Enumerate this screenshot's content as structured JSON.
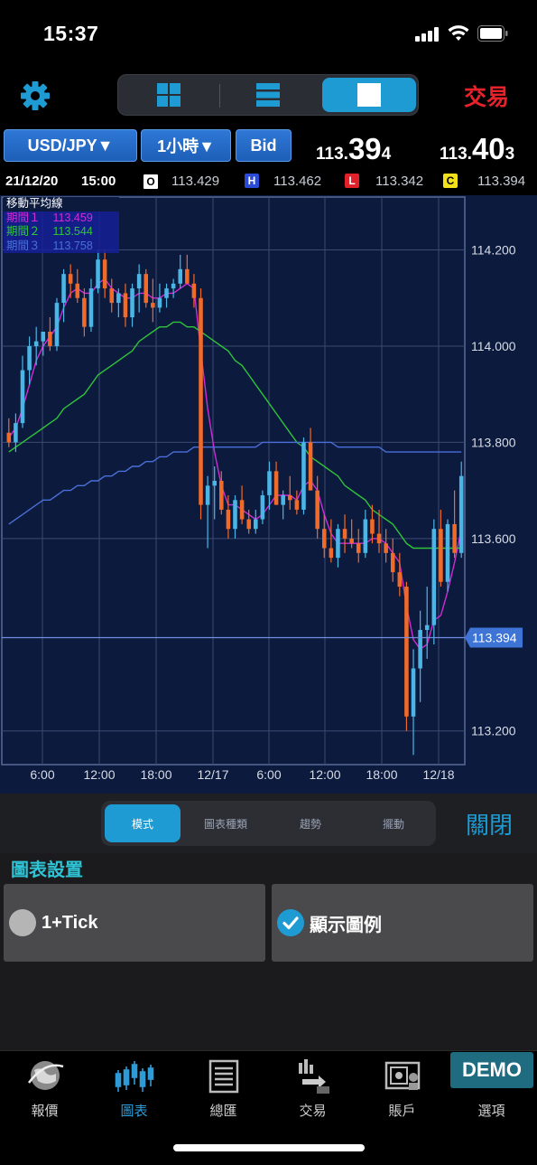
{
  "status_bar": {
    "time": "15:37"
  },
  "header": {
    "layout_buttons": [
      {
        "icon": "grid-4-icon",
        "active": false
      },
      {
        "icon": "rows-icon",
        "active": false
      },
      {
        "icon": "single-pane-icon",
        "active": true
      }
    ],
    "trade_label": "交易"
  },
  "selectors": {
    "pair": "USD/JPY▼",
    "timeframe": "1小時▼",
    "side": "Bid"
  },
  "quotes": {
    "bid": {
      "small": "113.",
      "big": "39",
      "tail": "4"
    },
    "ask": {
      "small": "113.",
      "big": "40",
      "tail": "3"
    }
  },
  "ohlc": {
    "date": "21/12/20",
    "time": "15:00",
    "open_label": "O",
    "open": "113.429",
    "high_label": "H",
    "high": "113.462",
    "low_label": "L",
    "low": "113.342",
    "close_label": "C",
    "close": "113.394"
  },
  "legend": {
    "title": "移動平均線",
    "items": [
      {
        "name": "期間１",
        "value": "113.459",
        "color": "#d02bd6"
      },
      {
        "name": "期間２",
        "value": "113.544",
        "color": "#2fc43a"
      },
      {
        "name": "期間３",
        "value": "113.758",
        "color": "#4a6fd8"
      }
    ]
  },
  "chart_data": {
    "type": "candlestick",
    "y_ticks": [
      "114.200",
      "114.000",
      "113.800",
      "113.600",
      "113.200"
    ],
    "y_tick_values": [
      114.2,
      114.0,
      113.8,
      113.6,
      113.2
    ],
    "ylim": [
      113.13,
      114.31
    ],
    "x_ticks": [
      "6:00",
      "12:00",
      "18:00",
      "12/17",
      "6:00",
      "12:00",
      "18:00",
      "12/18"
    ],
    "current_price": "113.394",
    "current_price_value": 113.394,
    "colors": {
      "up": "#4bb6e6",
      "down": "#f06a2a",
      "grid": "#3b4a72"
    },
    "candles": [
      [
        113.82,
        113.85,
        113.79,
        113.8
      ],
      [
        113.8,
        113.86,
        113.78,
        113.84
      ],
      [
        113.84,
        113.98,
        113.83,
        113.95
      ],
      [
        113.95,
        114.02,
        113.92,
        114.0
      ],
      [
        114.0,
        114.04,
        113.96,
        114.01
      ],
      [
        114.01,
        114.03,
        113.98,
        114.03
      ],
      [
        114.03,
        114.06,
        113.99,
        114.0
      ],
      [
        114.0,
        114.1,
        113.99,
        114.09
      ],
      [
        114.09,
        114.16,
        114.05,
        114.15
      ],
      [
        114.15,
        114.17,
        114.1,
        114.13
      ],
      [
        114.13,
        114.16,
        114.09,
        114.1
      ],
      [
        114.1,
        114.12,
        114.02,
        114.04
      ],
      [
        114.04,
        114.14,
        114.03,
        114.12
      ],
      [
        114.12,
        114.2,
        114.11,
        114.18
      ],
      [
        114.18,
        114.2,
        114.1,
        114.12
      ],
      [
        114.12,
        114.14,
        114.07,
        114.09
      ],
      [
        114.09,
        114.12,
        114.06,
        114.11
      ],
      [
        114.11,
        114.13,
        114.04,
        114.06
      ],
      [
        114.06,
        114.13,
        114.04,
        114.12
      ],
      [
        114.12,
        114.17,
        114.07,
        114.15
      ],
      [
        114.15,
        114.16,
        114.08,
        114.09
      ],
      [
        114.09,
        114.14,
        114.05,
        114.08
      ],
      [
        114.08,
        114.13,
        114.07,
        114.1
      ],
      [
        114.1,
        114.13,
        114.08,
        114.12
      ],
      [
        114.12,
        114.14,
        114.1,
        114.13
      ],
      [
        114.13,
        114.19,
        114.12,
        114.16
      ],
      [
        114.16,
        114.19,
        114.13,
        114.13
      ],
      [
        114.13,
        114.15,
        114.08,
        114.1
      ],
      [
        114.1,
        114.12,
        113.64,
        113.67
      ],
      [
        113.67,
        113.73,
        113.58,
        113.71
      ],
      [
        113.71,
        113.75,
        113.64,
        113.72
      ],
      [
        113.72,
        113.74,
        113.65,
        113.66
      ],
      [
        113.66,
        113.69,
        113.6,
        113.62
      ],
      [
        113.62,
        113.69,
        113.6,
        113.68
      ],
      [
        113.68,
        113.71,
        113.63,
        113.64
      ],
      [
        113.64,
        113.66,
        113.61,
        113.62
      ],
      [
        113.62,
        113.66,
        113.61,
        113.64
      ],
      [
        113.64,
        113.7,
        113.63,
        113.69
      ],
      [
        113.69,
        113.76,
        113.66,
        113.74
      ],
      [
        113.74,
        113.76,
        113.67,
        113.67
      ],
      [
        113.67,
        113.7,
        113.64,
        113.69
      ],
      [
        113.69,
        113.73,
        113.66,
        113.68
      ],
      [
        113.68,
        113.7,
        113.65,
        113.66
      ],
      [
        113.66,
        113.81,
        113.65,
        113.8
      ],
      [
        113.8,
        113.83,
        113.7,
        113.7
      ],
      [
        113.7,
        113.73,
        113.6,
        113.62
      ],
      [
        113.62,
        113.65,
        113.56,
        113.58
      ],
      [
        113.58,
        113.64,
        113.55,
        113.56
      ],
      [
        113.56,
        113.63,
        113.54,
        113.62
      ],
      [
        113.62,
        113.65,
        113.57,
        113.6
      ],
      [
        113.6,
        113.64,
        113.58,
        113.59
      ],
      [
        113.59,
        113.62,
        113.55,
        113.57
      ],
      [
        113.57,
        113.66,
        113.56,
        113.64
      ],
      [
        113.64,
        113.67,
        113.59,
        113.61
      ],
      [
        113.61,
        113.66,
        113.57,
        113.59
      ],
      [
        113.59,
        113.62,
        113.55,
        113.57
      ],
      [
        113.57,
        113.6,
        113.51,
        113.53
      ],
      [
        113.53,
        113.57,
        113.48,
        113.5
      ],
      [
        113.5,
        113.51,
        113.2,
        113.23
      ],
      [
        113.23,
        113.37,
        113.15,
        113.33
      ],
      [
        113.33,
        113.45,
        113.26,
        113.41
      ],
      [
        113.41,
        113.5,
        113.35,
        113.42
      ],
      [
        113.42,
        113.64,
        113.38,
        113.62
      ],
      [
        113.62,
        113.66,
        113.5,
        113.51
      ],
      [
        113.51,
        113.64,
        113.49,
        113.63
      ],
      [
        113.63,
        113.7,
        113.56,
        113.57
      ],
      [
        113.57,
        113.76,
        113.56,
        113.73
      ]
    ],
    "ma_series": [
      {
        "name": "期間１",
        "color": "#d02bd6",
        "values": [
          113.81,
          113.83,
          113.87,
          113.92,
          113.97,
          114.0,
          114.02,
          114.04,
          114.08,
          114.11,
          114.12,
          114.11,
          114.11,
          114.13,
          114.14,
          114.12,
          114.11,
          114.1,
          114.1,
          114.11,
          114.11,
          114.1,
          114.1,
          114.11,
          114.11,
          114.12,
          114.13,
          114.12,
          113.99,
          113.87,
          113.78,
          113.71,
          113.67,
          113.67,
          113.66,
          113.65,
          113.64,
          113.65,
          113.67,
          113.69,
          113.69,
          113.69,
          113.68,
          113.71,
          113.72,
          113.7,
          113.65,
          113.61,
          113.59,
          113.59,
          113.59,
          113.59,
          113.59,
          113.6,
          113.6,
          113.59,
          113.57,
          113.55,
          113.46,
          113.39,
          113.37,
          113.38,
          113.43,
          113.44,
          113.49,
          113.55,
          113.62
        ]
      },
      {
        "name": "期間２",
        "color": "#2fc43a",
        "values": [
          113.78,
          113.79,
          113.8,
          113.81,
          113.82,
          113.83,
          113.84,
          113.85,
          113.87,
          113.88,
          113.89,
          113.9,
          113.92,
          113.94,
          113.95,
          113.96,
          113.97,
          113.98,
          113.99,
          114.01,
          114.02,
          114.03,
          114.04,
          114.04,
          114.05,
          114.05,
          114.04,
          114.04,
          114.03,
          114.02,
          114.01,
          114.0,
          113.99,
          113.97,
          113.96,
          113.94,
          113.92,
          113.9,
          113.88,
          113.86,
          113.84,
          113.82,
          113.8,
          113.79,
          113.77,
          113.76,
          113.75,
          113.74,
          113.73,
          113.71,
          113.7,
          113.69,
          113.68,
          113.66,
          113.65,
          113.64,
          113.63,
          113.61,
          113.59,
          113.58,
          113.58,
          113.58,
          113.58,
          113.58,
          113.58,
          113.58,
          113.58
        ]
      },
      {
        "name": "期間３",
        "color": "#4a6fd8",
        "values": [
          113.63,
          113.64,
          113.65,
          113.66,
          113.67,
          113.68,
          113.68,
          113.69,
          113.7,
          113.7,
          113.71,
          113.71,
          113.72,
          113.72,
          113.73,
          113.73,
          113.74,
          113.74,
          113.75,
          113.75,
          113.76,
          113.76,
          113.77,
          113.77,
          113.78,
          113.78,
          113.78,
          113.79,
          113.79,
          113.79,
          113.79,
          113.79,
          113.79,
          113.79,
          113.79,
          113.79,
          113.79,
          113.8,
          113.8,
          113.8,
          113.8,
          113.8,
          113.8,
          113.8,
          113.8,
          113.8,
          113.8,
          113.8,
          113.79,
          113.79,
          113.79,
          113.79,
          113.79,
          113.79,
          113.79,
          113.78,
          113.78,
          113.78,
          113.78,
          113.78,
          113.78,
          113.78,
          113.78,
          113.78,
          113.78,
          113.78,
          113.78
        ]
      }
    ]
  },
  "panel": {
    "tabs": [
      "模式",
      "圖表種類",
      "趨勢",
      "擺動"
    ],
    "active_tab": 0,
    "close_label": "關閉"
  },
  "settings": {
    "title": "圖表設置",
    "options": [
      {
        "label": "1+Tick",
        "checked": false
      },
      {
        "label": "顯示圖例",
        "checked": true
      }
    ]
  },
  "bottom_nav": {
    "items": [
      {
        "label": "報價",
        "icon": "globe-icon"
      },
      {
        "label": "圖表",
        "icon": "candlestick-icon",
        "active": true
      },
      {
        "label": "總匯",
        "icon": "document-list-icon"
      },
      {
        "label": "交易",
        "icon": "trade-icon"
      },
      {
        "label": "賬戶",
        "icon": "safe-icon"
      },
      {
        "label": "選項",
        "icon": "options-icon"
      }
    ],
    "demo_badge": "DEMO"
  }
}
